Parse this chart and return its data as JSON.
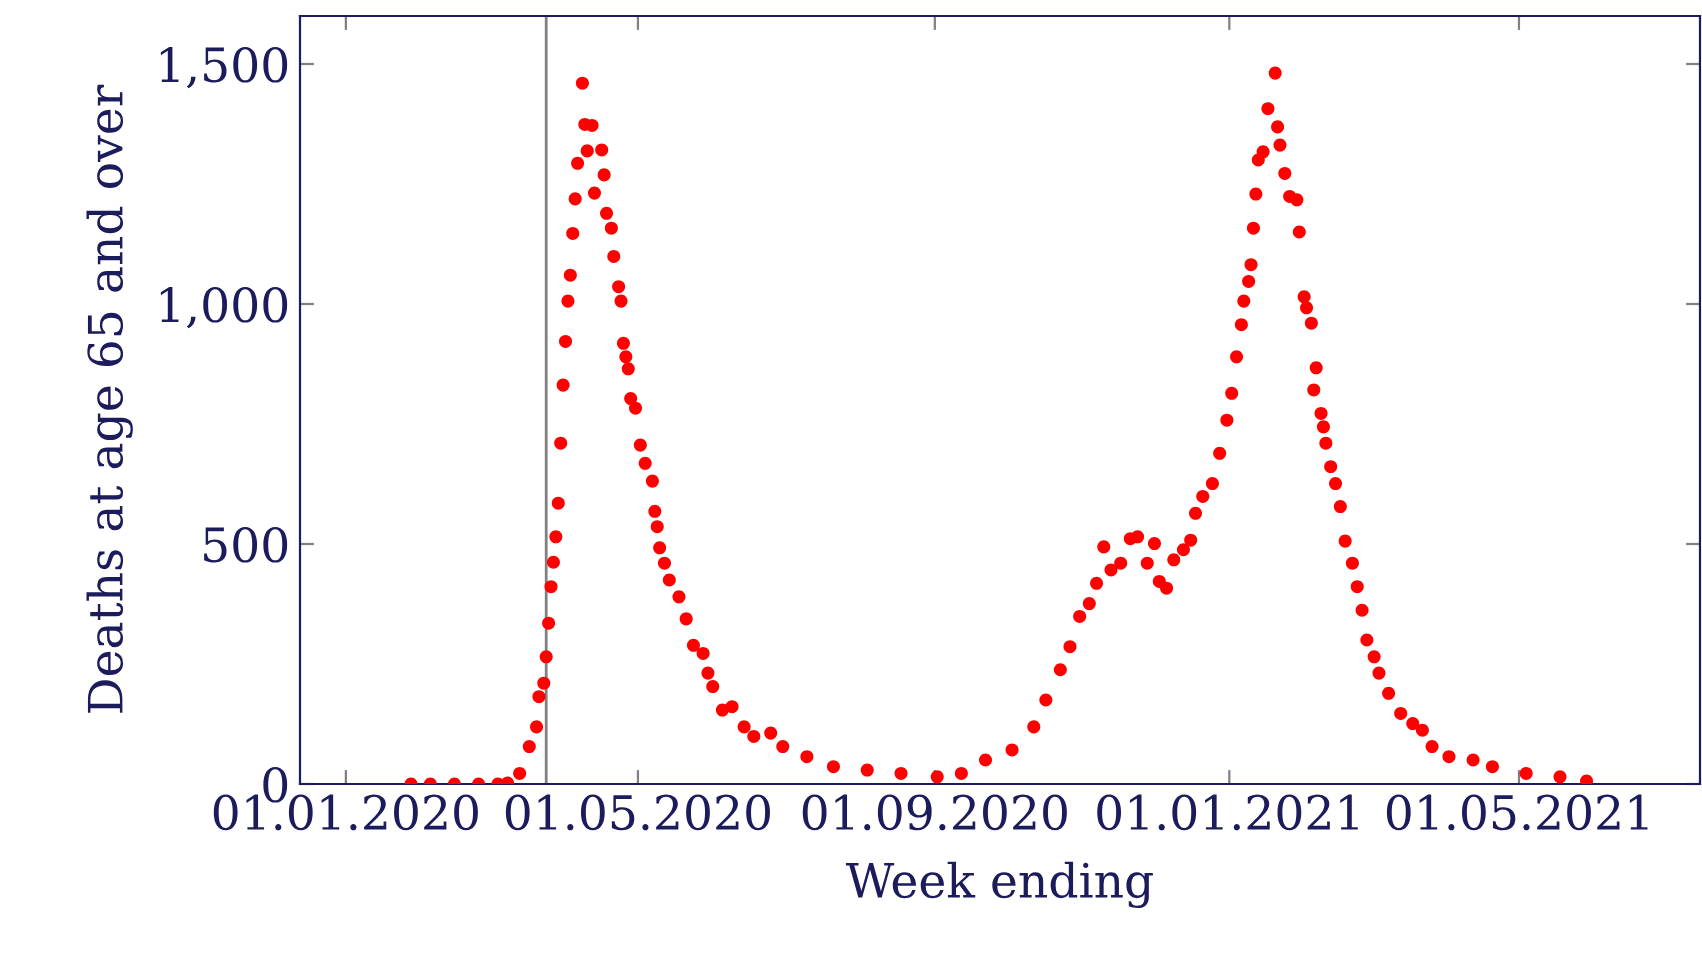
{
  "chart_data": {
    "type": "scatter",
    "xlabel": "Week ending",
    "ylabel": "Deaths at age 65 and over",
    "x": [
      "2020-01-28",
      "2020-02-05",
      "2020-02-15",
      "2020-02-25",
      "2020-03-04",
      "2020-03-08",
      "2020-03-13",
      "2020-03-17",
      "2020-03-20",
      "2020-03-21",
      "2020-03-23",
      "2020-03-24",
      "2020-03-25",
      "2020-03-26",
      "2020-03-27",
      "2020-03-28",
      "2020-03-29",
      "2020-03-30",
      "2020-03-31",
      "2020-04-01",
      "2020-04-02",
      "2020-04-03",
      "2020-04-04",
      "2020-04-05",
      "2020-04-06",
      "2020-04-08",
      "2020-04-09",
      "2020-04-10",
      "2020-04-12",
      "2020-04-13",
      "2020-04-16",
      "2020-04-17",
      "2020-04-18",
      "2020-04-20",
      "2020-04-21",
      "2020-04-23",
      "2020-04-24",
      "2020-04-25",
      "2020-04-26",
      "2020-04-27",
      "2020-04-28",
      "2020-04-30",
      "2020-05-02",
      "2020-05-04",
      "2020-05-07",
      "2020-05-08",
      "2020-05-09",
      "2020-05-10",
      "2020-05-12",
      "2020-05-14",
      "2020-05-18",
      "2020-05-21",
      "2020-05-24",
      "2020-05-28",
      "2020-05-30",
      "2020-06-01",
      "2020-06-05",
      "2020-06-09",
      "2020-06-14",
      "2020-06-18",
      "2020-06-25",
      "2020-06-30",
      "2020-07-10",
      "2020-07-21",
      "2020-08-04",
      "2020-08-18",
      "2020-09-02",
      "2020-09-12",
      "2020-09-22",
      "2020-10-03",
      "2020-10-12",
      "2020-10-17",
      "2020-10-23",
      "2020-10-27",
      "2020-10-31",
      "2020-11-04",
      "2020-11-07",
      "2020-11-10",
      "2020-11-13",
      "2020-11-17",
      "2020-11-21",
      "2020-11-24",
      "2020-11-28",
      "2020-12-01",
      "2020-12-03",
      "2020-12-06",
      "2020-12-09",
      "2020-12-13",
      "2020-12-16",
      "2020-12-18",
      "2020-12-21",
      "2020-12-25",
      "2020-12-28",
      "2020-12-31",
      "2021-01-02",
      "2021-01-04",
      "2021-01-06",
      "2021-01-07",
      "2021-01-09",
      "2021-01-10",
      "2021-01-11",
      "2021-01-12",
      "2021-01-13",
      "2021-01-15",
      "2021-01-17",
      "2021-01-20",
      "2021-01-21",
      "2021-01-22",
      "2021-01-24",
      "2021-01-26",
      "2021-01-29",
      "2021-01-30",
      "2021-02-01",
      "2021-02-02",
      "2021-02-04",
      "2021-02-05",
      "2021-02-06",
      "2021-02-08",
      "2021-02-09",
      "2021-02-10",
      "2021-02-12",
      "2021-02-14",
      "2021-02-16",
      "2021-02-18",
      "2021-02-21",
      "2021-02-23",
      "2021-02-25",
      "2021-02-27",
      "2021-03-02",
      "2021-03-04",
      "2021-03-08",
      "2021-03-13",
      "2021-03-18",
      "2021-03-22",
      "2021-03-26",
      "2021-04-02",
      "2021-04-12",
      "2021-04-20",
      "2021-05-04",
      "2021-05-18",
      "2021-05-29"
    ],
    "series": [
      {
        "color": "#ff0000",
        "values": [
          0,
          0,
          0,
          0,
          0,
          2,
          22,
          78,
          119,
          182,
          210,
          265,
          335,
          411,
          462,
          515,
          585,
          710,
          831,
          922,
          1006,
          1060,
          1147,
          1219,
          1293,
          1460,
          1374,
          1319,
          1372,
          1231,
          1321,
          1269,
          1189,
          1158,
          1099,
          1036,
          1006,
          918,
          890,
          865,
          803,
          783,
          706,
          668,
          631,
          568,
          536,
          492,
          460,
          425,
          390,
          344,
          289,
          272,
          231,
          203,
          154,
          161,
          119,
          99,
          106,
          78,
          57,
          36,
          29,
          22,
          15,
          22,
          50,
          71,
          119,
          175,
          238,
          286,
          349,
          376,
          418,
          494,
          446,
          460,
          511,
          515,
          460,
          501,
          422,
          408,
          467,
          488,
          508,
          564,
          599,
          626,
          689,
          758,
          814,
          890,
          957,
          1006,
          1047,
          1082,
          1158,
          1229,
          1300,
          1317,
          1407,
          1481,
          1369,
          1331,
          1272,
          1224,
          1217,
          1150,
          1015,
          992,
          960,
          821,
          867,
          772,
          744,
          710,
          661,
          626,
          578,
          506,
          460,
          411,
          362,
          300,
          265,
          231,
          189,
          147,
          126,
          112,
          78,
          57,
          50,
          36,
          22,
          15,
          6
        ]
      }
    ],
    "xlim": [
      "2019-12-13",
      "2021-07-15"
    ],
    "xticks": [
      {
        "value": "2020-01-01",
        "label": "01.01.2020"
      },
      {
        "value": "2020-05-01",
        "label": "01.05.2020"
      },
      {
        "value": "2020-09-01",
        "label": "01.09.2020"
      },
      {
        "value": "2021-01-01",
        "label": "01.01.2021"
      },
      {
        "value": "2021-05-01",
        "label": "01.05.2021"
      }
    ],
    "ylim": [
      0,
      1600
    ],
    "yticks": [
      0,
      500,
      {
        "value": 1000,
        "label": "1,000"
      },
      {
        "value": 1500,
        "label": "1,500"
      }
    ],
    "ref_lines": [
      {
        "axis": "x",
        "value": "2020-03-24",
        "color": "#808080"
      }
    ],
    "marker": "circle",
    "grid": false,
    "legend": false
  }
}
